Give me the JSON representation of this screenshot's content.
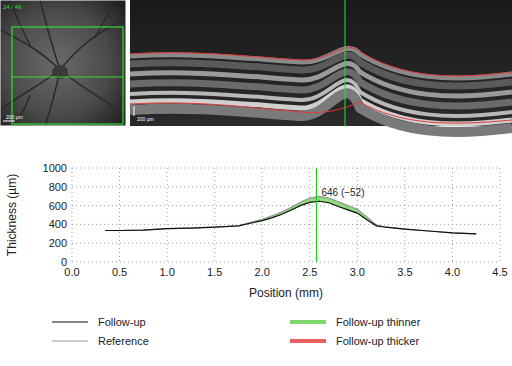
{
  "images": {
    "fundus": {
      "label": "24 / 49",
      "scale": "200 µm"
    },
    "oct": {
      "scale": "200 µm"
    }
  },
  "chart_data": {
    "type": "line",
    "y_label": "Thickness (µm)",
    "x_label": "Position (mm)",
    "x": [
      0.35,
      0.5,
      0.75,
      1.0,
      1.25,
      1.5,
      1.75,
      2.0,
      2.1,
      2.2,
      2.3,
      2.4,
      2.5,
      2.6,
      2.7,
      2.8,
      2.9,
      3.0,
      3.1,
      3.2,
      3.3,
      3.5,
      3.75,
      4.0,
      4.25
    ],
    "series": [
      {
        "name": "Follow-up",
        "color": "#111111",
        "values": [
          335,
          335,
          340,
          355,
          360,
          370,
          385,
          440,
          470,
          505,
          550,
          600,
          635,
          646,
          630,
          590,
          555,
          520,
          450,
          385,
          370,
          350,
          330,
          310,
          300
        ]
      },
      {
        "name": "Reference",
        "color": "#9a9a9a",
        "values": [
          335,
          335,
          340,
          355,
          360,
          370,
          385,
          455,
          490,
          530,
          580,
          635,
          680,
          698,
          680,
          640,
          600,
          560,
          480,
          395,
          370,
          350,
          330,
          310,
          300
        ]
      }
    ],
    "fill_legend": [
      {
        "name": "Follow-up thinner",
        "color": "#7fd66a"
      },
      {
        "name": "Follow-up thicker",
        "color": "#e86060"
      }
    ],
    "annotation": {
      "x": 2.57,
      "text": "646 (−52)"
    },
    "xlim": [
      0,
      4.5
    ],
    "ylim": [
      0,
      1000
    ],
    "xticks": [
      {
        "value": 0,
        "label": "0.0"
      },
      {
        "value": 0.5,
        "label": "0.5"
      },
      {
        "value": 1,
        "label": "1.0"
      },
      {
        "value": 1.5,
        "label": "1.5"
      },
      {
        "value": 2,
        "label": "2.0"
      },
      {
        "value": 2.5,
        "label": "2.5"
      },
      {
        "value": 3,
        "label": "3.0"
      },
      {
        "value": 3.5,
        "label": "3.5"
      },
      {
        "value": 4,
        "label": "4.0"
      },
      {
        "value": 4.5,
        "label": "4.5"
      }
    ],
    "yticks": [
      0,
      200,
      400,
      600,
      800,
      1000
    ],
    "grid": true
  }
}
